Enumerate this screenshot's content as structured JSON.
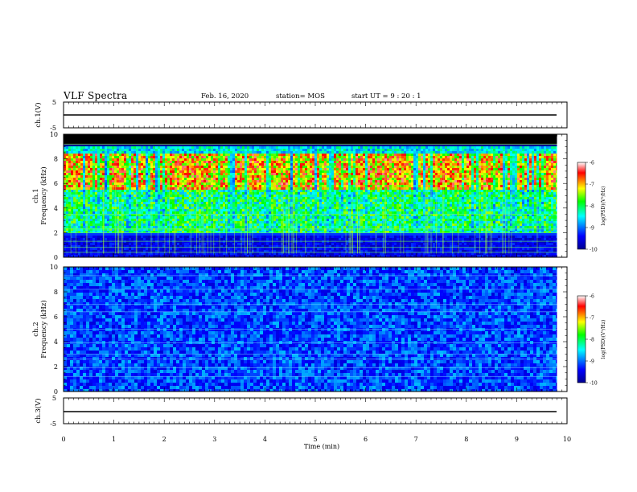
{
  "header": {
    "title": "VLF Spectra",
    "date": "Feb. 16, 2020",
    "station": "station= MOS",
    "start": "start  UT =   9  : 20 : 1"
  },
  "chart_data": [
    {
      "type": "line",
      "panel": "ch1-waveform",
      "ylabel": "ch.1(V)",
      "ylim": [
        -5,
        5
      ],
      "ytick_labels": [
        "5",
        "-5"
      ],
      "series": [
        {
          "x": [
            0,
            9.8
          ],
          "y": [
            0,
            0
          ]
        }
      ]
    },
    {
      "type": "heatmap",
      "panel": "ch1-spectrogram",
      "ylabel": "ch.1\nFrequency (kHz)",
      "ylim": [
        0,
        10
      ],
      "ytick_labels": [
        "0",
        "2",
        "4",
        "6",
        "8",
        "10"
      ],
      "xlim": [
        0,
        9.8
      ],
      "colorbar": {
        "label": "log(PSD)(V²/Hz)",
        "range": [
          -10,
          -6
        ],
        "tick_labels": [
          "-6",
          "-7",
          "-8",
          "-9",
          "-10"
        ]
      },
      "description_bands_khz": {
        "black_top": [
          9.2,
          10
        ],
        "strong_emission": [
          5.5,
          7.8
        ],
        "moderate_emission": [
          2,
          5.5
        ],
        "dark_low": [
          0,
          2
        ]
      }
    },
    {
      "type": "heatmap",
      "panel": "ch2-spectrogram",
      "ylabel": "ch.2\nFrequency (kHz)",
      "ylim": [
        0,
        10
      ],
      "ytick_labels": [
        "0",
        "2",
        "4",
        "6",
        "8",
        "10"
      ],
      "xlim": [
        0,
        9.8
      ],
      "colorbar": {
        "label": "log(PSD)(V²/Hz)",
        "range": [
          -10,
          -6
        ],
        "tick_labels": [
          "-6",
          "-7",
          "-8",
          "-9",
          "-10"
        ]
      }
    },
    {
      "type": "line",
      "panel": "ch3-waveform",
      "ylabel": "ch.3(V)",
      "ylim": [
        -5,
        5
      ],
      "ytick_labels": [
        "5",
        "-5"
      ],
      "series": [
        {
          "x": [
            0,
            9.8
          ],
          "y": [
            0,
            0
          ]
        }
      ]
    }
  ],
  "xaxis": {
    "label": "Time  (min)",
    "range": [
      0,
      10
    ],
    "tick_labels": [
      "0",
      "1",
      "2",
      "3",
      "4",
      "5",
      "6",
      "7",
      "8",
      "9",
      "10"
    ]
  },
  "colors": {
    "colormap": [
      "#00008f",
      "#0000ff",
      "#00ffff",
      "#00ff00",
      "#ffff00",
      "#ff0000",
      "#ffffff"
    ]
  }
}
